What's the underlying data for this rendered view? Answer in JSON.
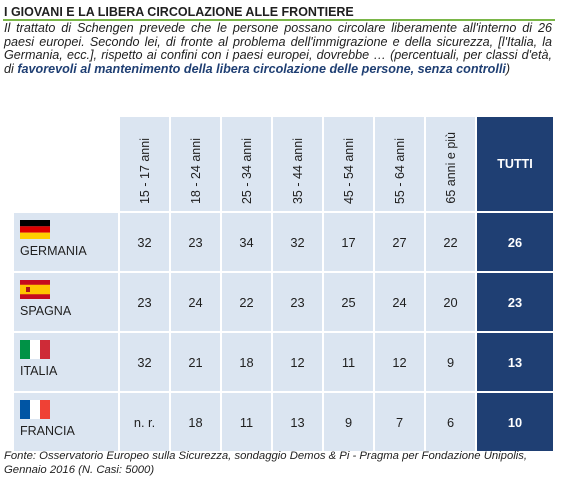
{
  "title": "I GIOVANI E LA LIBERA CIRCOLAZIONE  ALLE FRONTIERE",
  "intro": {
    "text": "Il trattato di Schengen prevede che le persone possano circolare liberamente all'interno di 26 paesi europei. Secondo lei, di fronte al problema dell'immigrazione e della sicurezza, [l'Italia, la Germania, ecc.], rispetto ai confini con i paesi europei, dovrebbe … (percentuali, per classi d'età, di ",
    "emphasis": "favorevoli al mantenimento della libera circolazione delle persone, senza controlli",
    "closing": ")"
  },
  "source": "Fonte: Osservatorio Europeo sulla Sicurezza, sondaggio Demos & Pi - Pragma per Fondazione Unipolis, Gennaio 2016 (N. Casi: 5000)",
  "colors": {
    "accent_rule": "#7ab648",
    "cell_light": "#dbe5f1",
    "total_dark": "#1f3f73"
  },
  "chart_data": {
    "type": "table",
    "columns": [
      "15 - 17 anni",
      "18 - 24 anni",
      "25 - 34 anni",
      "35 - 44 anni",
      "45 - 54 anni",
      "55 - 64 anni",
      "65 anni e più",
      "TUTTI"
    ],
    "rows": [
      {
        "country": "GERMANIA",
        "flag": "germany-flag-icon",
        "values": [
          "32",
          "23",
          "34",
          "32",
          "17",
          "27",
          "22"
        ],
        "total": "26"
      },
      {
        "country": "SPAGNA",
        "flag": "spain-flag-icon",
        "values": [
          "23",
          "24",
          "22",
          "23",
          "25",
          "24",
          "20"
        ],
        "total": "23"
      },
      {
        "country": "ITALIA",
        "flag": "italy-flag-icon",
        "values": [
          "32",
          "21",
          "18",
          "12",
          "11",
          "12",
          "9"
        ],
        "total": "13"
      },
      {
        "country": "FRANCIA",
        "flag": "france-flag-icon",
        "values": [
          "n. r.",
          "18",
          "11",
          "13",
          "9",
          "7",
          "6"
        ],
        "total": "10"
      }
    ]
  }
}
